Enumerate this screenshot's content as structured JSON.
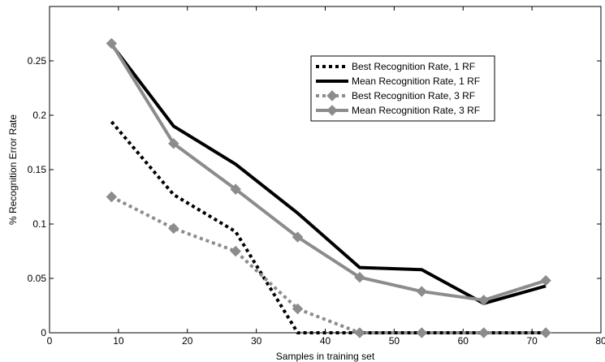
{
  "chart_data": {
    "type": "line",
    "xlabel": "Samples in training set",
    "ylabel": "% Recognition Error Rate",
    "xlim": [
      0,
      80
    ],
    "ylim": [
      0,
      0.3
    ],
    "xticks": [
      0,
      10,
      20,
      30,
      40,
      50,
      60,
      70,
      80
    ],
    "xtick_labels": [
      "0",
      "10",
      "20",
      "30",
      "40",
      "50",
      "60",
      "70",
      "80"
    ],
    "yticks": [
      0,
      0.05,
      0.1,
      0.15,
      0.2,
      0.25
    ],
    "ytick_labels": [
      "0",
      "0.05",
      "0.1",
      "0.15",
      "0.2",
      "0.25"
    ],
    "grid": false,
    "legend_position": "top-right",
    "series": [
      {
        "name": "Best Recognition Rate, 1 RF",
        "color": "#000000",
        "line_style": "dotted",
        "marker": "none",
        "x": [
          9,
          18,
          27,
          36,
          45,
          54,
          63,
          72
        ],
        "y": [
          0.194,
          0.127,
          0.093,
          0.0,
          0.0,
          0.0,
          0.0,
          0.0
        ]
      },
      {
        "name": "Mean Recognition Rate, 1 RF",
        "color": "#000000",
        "line_style": "solid",
        "marker": "none",
        "x": [
          9,
          18,
          27,
          36,
          45,
          54,
          63,
          72
        ],
        "y": [
          0.265,
          0.19,
          0.155,
          0.11,
          0.06,
          0.058,
          0.027,
          0.043
        ]
      },
      {
        "name": "Best Recognition Rate, 3 RF",
        "color": "#8c8c8c",
        "line_style": "dotted",
        "marker": "diamond",
        "x": [
          9,
          18,
          27,
          36,
          45,
          54,
          63,
          72
        ],
        "y": [
          0.125,
          0.096,
          0.075,
          0.022,
          0.0,
          0.0,
          0.0,
          0.0
        ]
      },
      {
        "name": "Mean Recognition Rate, 3 RF",
        "color": "#8c8c8c",
        "line_style": "solid",
        "marker": "diamond",
        "x": [
          9,
          18,
          27,
          36,
          45,
          54,
          63,
          72
        ],
        "y": [
          0.266,
          0.174,
          0.132,
          0.088,
          0.051,
          0.038,
          0.03,
          0.048
        ]
      }
    ]
  }
}
